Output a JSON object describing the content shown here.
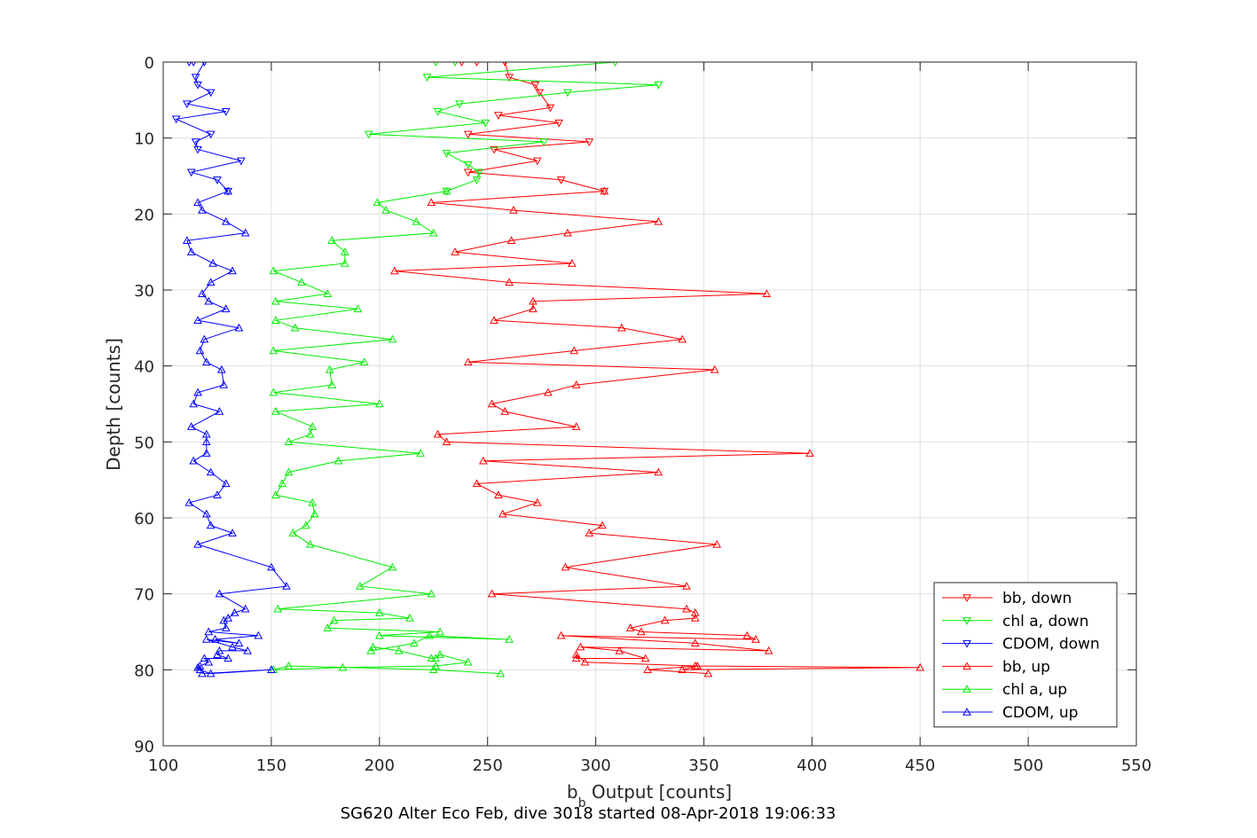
{
  "caption": "SG620 Alter Eco Feb, dive 3018 started 08-Apr-2018 19:06:33",
  "chart_data": {
    "type": "line",
    "title": "",
    "xlabel_main": "b",
    "xlabel_sub": "b",
    "xlabel_rest": " Output [counts]",
    "ylabel": "Depth [counts]",
    "xlim": [
      100,
      550
    ],
    "ylim": [
      0,
      90
    ],
    "y_reversed": true,
    "grid": true,
    "x_ticks": [
      100,
      150,
      200,
      250,
      300,
      350,
      400,
      450,
      500,
      550
    ],
    "y_ticks": [
      0,
      10,
      20,
      30,
      40,
      50,
      60,
      70,
      80,
      90
    ],
    "legend_position": "bottom-right",
    "series": [
      {
        "name": "bb, down",
        "color": "#ff0000",
        "marker": "triangle-down",
        "x": [
          238,
          245,
          258,
          260,
          272,
          274,
          279,
          255,
          283,
          241,
          297,
          253,
          273,
          241,
          284,
          304
        ],
        "y": [
          0,
          0,
          0,
          2,
          3,
          4,
          6,
          7,
          8,
          9.5,
          10.5,
          11.5,
          13,
          14.5,
          15.5,
          17
        ]
      },
      {
        "name": "chl a, down",
        "color": "#00ee00",
        "marker": "triangle-down",
        "x": [
          226,
          235,
          309,
          222,
          329,
          287,
          237,
          227,
          249,
          195,
          276,
          231,
          241,
          246,
          245,
          231
        ],
        "y": [
          0,
          0,
          0,
          2,
          3,
          4,
          5.5,
          6.5,
          8,
          9.5,
          10.5,
          12,
          13.5,
          14.5,
          15.5,
          17
        ]
      },
      {
        "name": "CDOM, down",
        "color": "#0000ff",
        "marker": "triangle-down",
        "x": [
          112,
          114,
          119,
          115,
          116,
          122,
          111,
          129,
          106,
          122,
          115,
          116,
          136,
          113,
          125,
          130
        ],
        "y": [
          0,
          0,
          0,
          2,
          3,
          4,
          5.5,
          6.5,
          7.5,
          9.5,
          10.5,
          11.5,
          13,
          14.5,
          15.5,
          17
        ]
      },
      {
        "name": "bb, up",
        "color": "#ff0000",
        "marker": "triangle-up",
        "x": [
          304,
          224,
          262,
          329,
          287,
          261,
          235,
          289,
          207,
          260,
          379,
          271,
          271,
          253,
          312,
          340,
          290,
          241,
          355,
          291,
          278,
          252,
          258,
          291,
          227,
          231,
          399,
          248,
          329,
          245,
          255,
          273,
          257,
          303,
          297,
          356,
          286,
          342,
          252,
          342,
          346,
          346,
          332,
          316,
          321,
          370,
          374,
          284,
          346,
          380,
          293,
          311,
          323,
          291,
          291,
          295,
          346,
          450,
          340,
          347,
          324,
          352
        ],
        "y": [
          17,
          18.5,
          19.5,
          21,
          22.5,
          23.5,
          25,
          26.5,
          27.5,
          29,
          30.5,
          31.5,
          32.5,
          34,
          35,
          36.5,
          38,
          39.5,
          40.5,
          42.5,
          43.5,
          45,
          46,
          48,
          49,
          50,
          51.5,
          52.5,
          54,
          55.5,
          57,
          58,
          59.5,
          61,
          62,
          63.5,
          66.5,
          69,
          70,
          72,
          72.5,
          73.2,
          73.5,
          74.5,
          75,
          75.5,
          76,
          75.5,
          76.5,
          77.5,
          77,
          77.5,
          78.5,
          78.5,
          78,
          79,
          79.5,
          79.7,
          80,
          79.5,
          80,
          80.5
        ]
      },
      {
        "name": "chl a, up",
        "color": "#00ee00",
        "marker": "triangle-up",
        "x": [
          231,
          199,
          203,
          217,
          225,
          178,
          184,
          184,
          151,
          164,
          176,
          152,
          190,
          152,
          161,
          206,
          151,
          193,
          177,
          178,
          151,
          200,
          152,
          169,
          168,
          158,
          219,
          181,
          158,
          155,
          152,
          169,
          170,
          166,
          160,
          168,
          206,
          191,
          224,
          153,
          200,
          214,
          179,
          176,
          228,
          200,
          260,
          223,
          216,
          196,
          197,
          209,
          224,
          226,
          228,
          241,
          226,
          183,
          151,
          158,
          225,
          256
        ],
        "y": [
          17,
          18.5,
          19.5,
          21,
          22.5,
          23.5,
          25,
          26.5,
          27.5,
          29,
          30.5,
          31.5,
          32.5,
          34,
          35,
          36.5,
          38,
          39.5,
          40.5,
          42.5,
          43.5,
          45,
          46,
          48,
          49,
          50,
          51.5,
          52.5,
          54,
          55.5,
          57,
          58,
          59.5,
          61,
          62,
          63.5,
          66.5,
          69,
          70,
          72,
          72.5,
          73.2,
          73.5,
          74.5,
          75,
          75.5,
          76,
          75.5,
          76.5,
          77.5,
          77,
          77.5,
          78.5,
          78.5,
          78,
          79,
          79.5,
          79.7,
          80,
          79.5,
          80,
          80.5
        ]
      },
      {
        "name": "CDOM, up",
        "color": "#0000ff",
        "marker": "triangle-up",
        "x": [
          130,
          116,
          118,
          129,
          138,
          111,
          113,
          123,
          132,
          122,
          118,
          121,
          129,
          116,
          135,
          119,
          117,
          120,
          127,
          128,
          116,
          114,
          126,
          113,
          120,
          120,
          120,
          114,
          122,
          129,
          125,
          112,
          120,
          122,
          132,
          116,
          150,
          157,
          126,
          138,
          133,
          130,
          128,
          129,
          121,
          144,
          124,
          135,
          120,
          132,
          139,
          126,
          125,
          130,
          119,
          121,
          117,
          116,
          117,
          122,
          150,
          118
        ],
        "y": [
          17,
          18.5,
          19.5,
          21,
          22.5,
          23.5,
          25,
          26.5,
          27.5,
          29,
          30.5,
          31.5,
          32.5,
          34,
          35,
          36.5,
          38,
          39.5,
          40.5,
          42.5,
          43.5,
          45,
          46,
          48,
          49,
          50,
          51.5,
          52.5,
          54,
          55.5,
          57,
          58,
          59.5,
          61,
          62,
          63.5,
          66.5,
          69,
          70,
          72,
          72.5,
          73.2,
          73.5,
          74.5,
          75,
          75.5,
          76,
          76.5,
          76,
          77,
          77.5,
          77.5,
          78,
          78.5,
          78.5,
          79,
          79.5,
          79.7,
          80,
          80.5,
          80,
          80.5
        ]
      }
    ]
  }
}
